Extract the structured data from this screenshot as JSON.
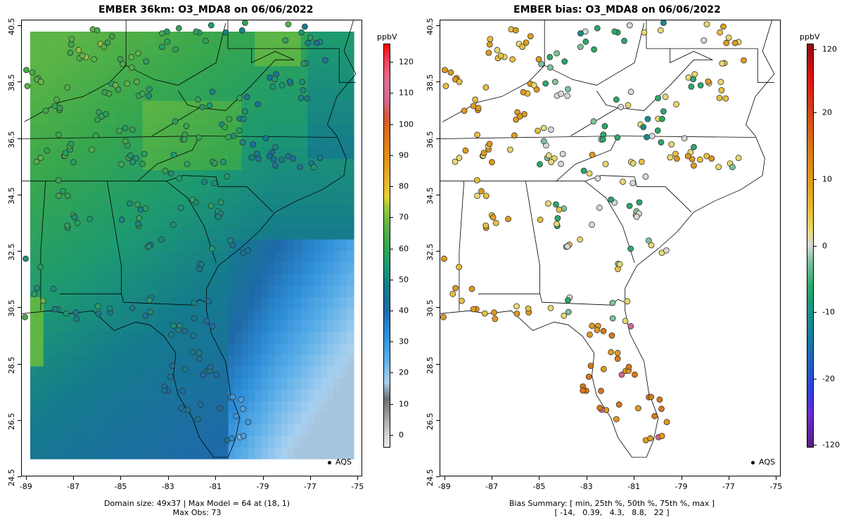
{
  "left_panel": {
    "title": "EMBER 36km: O3_MDA8 on 06/06/2022",
    "footer_line1": "Domain size: 49x37 | Max Model = 64 at (18, 1)",
    "footer_line2": "Max Obs: 73",
    "colorbar_label": "ppbV",
    "colorbar_ticks": [
      "0",
      "10",
      "20",
      "30",
      "40",
      "50",
      "60",
      "70",
      "80",
      "90",
      "100",
      "110",
      "120"
    ],
    "legend_label": "AQS"
  },
  "right_panel": {
    "title": "EMBER bias: O3_MDA8 on 06/06/2022",
    "footer_line1": "Bias Summary: [ min, 25th %, 50th %, 75th %, max ]",
    "footer_line2": "[ -14,   0.39,   4.3,   8.8,   22 ]",
    "colorbar_label": "ppbV",
    "colorbar_ticks": [
      "120",
      "20",
      "10",
      "0",
      "-10",
      "-20",
      "-120"
    ],
    "legend_label": "AQS"
  },
  "axes": {
    "x_ticks": [
      "-89",
      "-87",
      "-85",
      "-83",
      "-81",
      "-79",
      "-77",
      "-75"
    ],
    "y_ticks": [
      "24.5",
      "26.5",
      "28.5",
      "30.5",
      "32.5",
      "34.5",
      "36.5",
      "38.5",
      "40.5"
    ]
  },
  "chart_data": [
    {
      "type": "heatmap",
      "title": "EMBER 36km: O3_MDA8 on 06/06/2022",
      "variable": "O3_MDA8",
      "units": "ppbV",
      "domain_size": "49x37",
      "max_model": 64,
      "max_model_cell": [
        18,
        1
      ],
      "max_obs": 73,
      "colorbar_range": [
        0,
        120
      ],
      "xlim": [
        -89.2,
        -74.8
      ],
      "ylim": [
        24.5,
        40.7
      ],
      "legend": "AQS"
    },
    {
      "type": "scatter",
      "title": "EMBER bias: O3_MDA8 on 06/06/2022",
      "units": "ppbV",
      "bias_summary": {
        "min": -14,
        "p25": 0.39,
        "p50": 4.3,
        "p75": 8.8,
        "max": 22
      },
      "colorbar_ticks": [
        -120,
        -20,
        -10,
        0,
        10,
        20,
        120
      ],
      "xlim": [
        -89.2,
        -74.8
      ],
      "ylim": [
        24.5,
        40.7
      ],
      "legend": "AQS"
    }
  ]
}
